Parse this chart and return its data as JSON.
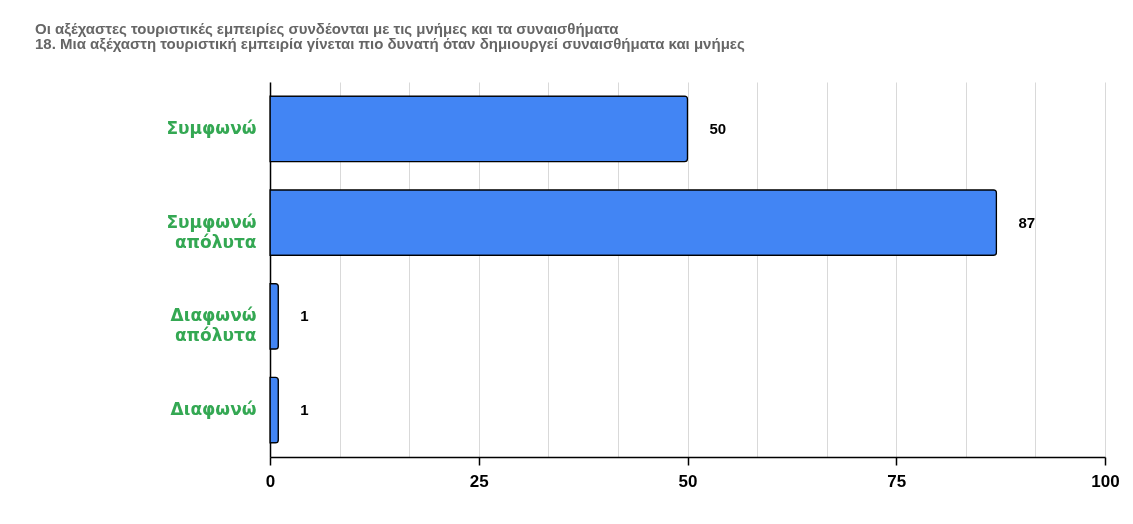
{
  "chart_data": {
    "type": "bar",
    "orientation": "horizontal",
    "title": "Οι αξέχαστες τουριστικές εμπειρίες συνδέονται με τις μνήμες και τα συναισθήματα",
    "subtitle": "18. Μια αξέχαστη τουριστική εμπειρία γίνεται πιο δυνατή όταν δημιουργεί συναισθήματα και μνήμες",
    "categories": [
      "Συμφωνώ",
      "Συμφωνώ απόλυτα",
      "Διαφωνώ απόλυτα",
      "Διαφωνώ"
    ],
    "values": [
      50,
      87,
      1,
      1
    ],
    "color": "#4285f4",
    "data_labels": true,
    "xlim": [
      0,
      100
    ],
    "xticks": [
      0,
      {
        "value": 8.33,
        "label": null
      },
      {
        "value": 16.67,
        "label": null
      },
      25,
      {
        "value": 33.33,
        "label": null
      },
      {
        "value": 41.67,
        "label": null
      },
      50,
      {
        "value": 58.33,
        "label": null
      },
      {
        "value": 66.67,
        "label": null
      },
      75,
      {
        "value": 83.33,
        "label": null
      },
      {
        "value": 91.67,
        "label": null
      },
      100
    ],
    "grid": "x"
  }
}
